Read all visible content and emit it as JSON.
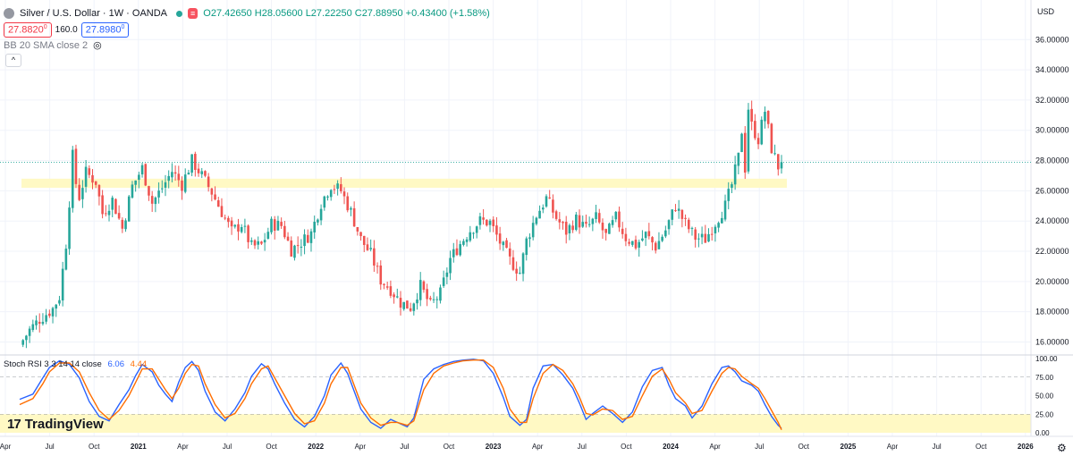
{
  "header": {
    "symbol_title": "Silver / U.S. Dollar · 1W · OANDA",
    "badge": "≡",
    "open": "O27.42650",
    "high": "H28.05600",
    "low": "L27.22250",
    "close": "C27.88950",
    "change": "+0.43400 (+1.58%)",
    "sell_price": "27.8820",
    "sell_sup": "0",
    "spread": "160.0",
    "buy_price": "27.8980",
    "buy_sup": "0",
    "indicator": "BB 20 SMA close 2",
    "collapse_glyph": "^"
  },
  "stoch": {
    "label": "Stoch RSI 3 3 14 14 close",
    "k_value": "6.06",
    "d_value": "4.44"
  },
  "branding": {
    "logo": "17",
    "name": "TradingView"
  },
  "currency": "USD",
  "colors": {
    "up": "#26a69a",
    "down": "#ef5350",
    "k": "#2962ff",
    "d": "#ff6d00",
    "zone": "#fff9c4",
    "grid": "#f0f3fa",
    "text": "#131722"
  },
  "chart_data": [
    {
      "type": "candlestick",
      "title": "Silver / U.S. Dollar · 1W · OANDA",
      "interval": "1W",
      "x_ticks": [
        "Apr",
        "Jul",
        "Oct",
        "2021",
        "Apr",
        "Jul",
        "Oct",
        "2022",
        "Apr",
        "Jul",
        "Oct",
        "2023",
        "Apr",
        "Jul",
        "Oct",
        "2024",
        "Apr",
        "Jul",
        "Oct",
        "2025",
        "Apr",
        "Jul",
        "Oct",
        "2026"
      ],
      "y_ticks": [
        "16.00000",
        "18.00000",
        "20.00000",
        "22.00000",
        "24.00000",
        "26.00000",
        "28.00000",
        "30.00000",
        "32.00000",
        "34.00000",
        "36.00000"
      ],
      "ylim": [
        15.2,
        37.2
      ],
      "last_price": 27.8895,
      "support_zone": [
        26.2,
        26.8
      ],
      "anchors": [
        [
          0,
          15.8
        ],
        [
          3,
          16.8
        ],
        [
          6,
          17.5
        ],
        [
          10,
          18.2
        ],
        [
          12,
          19.0
        ],
        [
          14,
          22.5
        ],
        [
          15,
          25.3
        ],
        [
          16,
          28.3
        ],
        [
          17,
          26.5
        ],
        [
          18,
          25.6
        ],
        [
          20,
          27.2
        ],
        [
          23,
          26.6
        ],
        [
          25,
          24.5
        ],
        [
          28,
          25.4
        ],
        [
          31,
          23.5
        ],
        [
          34,
          26.3
        ],
        [
          37,
          27.5
        ],
        [
          40,
          25.2
        ],
        [
          43,
          26.2
        ],
        [
          46,
          27.3
        ],
        [
          49,
          26.4
        ],
        [
          52,
          28.0
        ],
        [
          55,
          27.0
        ],
        [
          58,
          25.9
        ],
        [
          61,
          24.6
        ],
        [
          64,
          23.3
        ],
        [
          67,
          23.8
        ],
        [
          70,
          22.3
        ],
        [
          73,
          22.4
        ],
        [
          76,
          23.8
        ],
        [
          79,
          23.7
        ],
        [
          82,
          22.1
        ],
        [
          85,
          22.6
        ],
        [
          88,
          23.2
        ],
        [
          91,
          25.2
        ],
        [
          94,
          26.4
        ],
        [
          97,
          26.0
        ],
        [
          100,
          24.6
        ],
        [
          103,
          22.8
        ],
        [
          106,
          21.8
        ],
        [
          109,
          20.1
        ],
        [
          112,
          19.5
        ],
        [
          115,
          18.6
        ],
        [
          118,
          18.3
        ],
        [
          121,
          19.7
        ],
        [
          124,
          18.4
        ],
        [
          127,
          19.2
        ],
        [
          130,
          21.5
        ],
        [
          133,
          22.5
        ],
        [
          136,
          23.4
        ],
        [
          139,
          24.0
        ],
        [
          142,
          23.9
        ],
        [
          145,
          22.6
        ],
        [
          148,
          21.4
        ],
        [
          151,
          20.6
        ],
        [
          153,
          22.7
        ],
        [
          156,
          24.4
        ],
        [
          159,
          25.5
        ],
        [
          162,
          24.2
        ],
        [
          165,
          23.3
        ],
        [
          168,
          24.1
        ],
        [
          171,
          23.5
        ],
        [
          174,
          24.2
        ],
        [
          177,
          23.0
        ],
        [
          180,
          24.2
        ],
        [
          183,
          22.9
        ],
        [
          186,
          22.4
        ],
        [
          189,
          23.1
        ],
        [
          192,
          22.3
        ],
        [
          195,
          23.4
        ],
        [
          198,
          25.0
        ],
        [
          201,
          23.8
        ],
        [
          204,
          22.9
        ],
        [
          207,
          22.8
        ],
        [
          210,
          23.9
        ],
        [
          213,
          25.0
        ],
        [
          215,
          26.4
        ],
        [
          217,
          28.2
        ],
        [
          218,
          30.0
        ],
        [
          219,
          27.5
        ],
        [
          220,
          31.5
        ],
        [
          221,
          30.3
        ],
        [
          223,
          29.4
        ],
        [
          225,
          31.3
        ],
        [
          227,
          28.8
        ],
        [
          229,
          27.6
        ],
        [
          230,
          27.89
        ]
      ]
    },
    {
      "type": "line",
      "title": "Stoch RSI 3 3 14 14 close",
      "ylim": [
        0,
        100
      ],
      "y_ticks": [
        "0.00",
        "25.00",
        "50.00",
        "75.00",
        "100.00"
      ],
      "bands": [
        20,
        80
      ],
      "series": [
        {
          "name": "K",
          "last": 6.06,
          "points": [
            [
              0,
              45
            ],
            [
              4,
              52
            ],
            [
              7,
              74
            ],
            [
              9,
              88
            ],
            [
              12,
              97
            ],
            [
              15,
              92
            ],
            [
              18,
              74
            ],
            [
              21,
              42
            ],
            [
              24,
              22
            ],
            [
              27,
              16
            ],
            [
              30,
              38
            ],
            [
              33,
              58
            ],
            [
              35,
              77
            ],
            [
              37,
              92
            ],
            [
              40,
              82
            ],
            [
              42,
              64
            ],
            [
              44,
              52
            ],
            [
              46,
              42
            ],
            [
              48,
              68
            ],
            [
              50,
              88
            ],
            [
              52,
              96
            ],
            [
              54,
              84
            ],
            [
              56,
              56
            ],
            [
              59,
              28
            ],
            [
              62,
              16
            ],
            [
              65,
              32
            ],
            [
              68,
              54
            ],
            [
              70,
              76
            ],
            [
              73,
              93
            ],
            [
              75,
              86
            ],
            [
              77,
              66
            ],
            [
              80,
              40
            ],
            [
              83,
              18
            ],
            [
              86,
              8
            ],
            [
              89,
              22
            ],
            [
              92,
              50
            ],
            [
              94,
              78
            ],
            [
              97,
              94
            ],
            [
              99,
              80
            ],
            [
              101,
              56
            ],
            [
              103,
              32
            ],
            [
              106,
              14
            ],
            [
              109,
              6
            ],
            [
              112,
              18
            ],
            [
              114,
              14
            ],
            [
              117,
              8
            ],
            [
              119,
              20
            ],
            [
              122,
              72
            ],
            [
              125,
              86
            ],
            [
              128,
              92
            ],
            [
              131,
              96
            ],
            [
              134,
              98
            ],
            [
              137,
              99
            ],
            [
              140,
              97
            ],
            [
              143,
              80
            ],
            [
              146,
              48
            ],
            [
              148,
              22
            ],
            [
              151,
              10
            ],
            [
              153,
              18
            ],
            [
              155,
              60
            ],
            [
              158,
              90
            ],
            [
              161,
              92
            ],
            [
              164,
              78
            ],
            [
              167,
              60
            ],
            [
              169,
              40
            ],
            [
              171,
              18
            ],
            [
              173,
              26
            ],
            [
              176,
              36
            ],
            [
              179,
              26
            ],
            [
              182,
              14
            ],
            [
              185,
              28
            ],
            [
              188,
              62
            ],
            [
              191,
              84
            ],
            [
              194,
              88
            ],
            [
              196,
              64
            ],
            [
              198,
              46
            ],
            [
              201,
              36
            ],
            [
              203,
              20
            ],
            [
              206,
              36
            ],
            [
              209,
              66
            ],
            [
              212,
              88
            ],
            [
              214,
              90
            ],
            [
              216,
              82
            ],
            [
              218,
              70
            ],
            [
              221,
              64
            ],
            [
              223,
              56
            ],
            [
              225,
              38
            ],
            [
              227,
              22
            ],
            [
              229,
              10
            ],
            [
              230,
              6
            ]
          ]
        },
        {
          "name": "D",
          "last": 4.44,
          "points": [
            [
              0,
              38
            ],
            [
              4,
              46
            ],
            [
              7,
              66
            ],
            [
              9,
              82
            ],
            [
              12,
              94
            ],
            [
              15,
              94
            ],
            [
              18,
              82
            ],
            [
              21,
              54
            ],
            [
              24,
              30
            ],
            [
              27,
              18
            ],
            [
              30,
              30
            ],
            [
              33,
              50
            ],
            [
              35,
              68
            ],
            [
              37,
              86
            ],
            [
              40,
              86
            ],
            [
              42,
              72
            ],
            [
              44,
              58
            ],
            [
              46,
              46
            ],
            [
              48,
              60
            ],
            [
              50,
              80
            ],
            [
              52,
              92
            ],
            [
              54,
              90
            ],
            [
              56,
              66
            ],
            [
              59,
              38
            ],
            [
              62,
              20
            ],
            [
              65,
              26
            ],
            [
              68,
              46
            ],
            [
              70,
              66
            ],
            [
              73,
              86
            ],
            [
              75,
              90
            ],
            [
              77,
              74
            ],
            [
              80,
              50
            ],
            [
              83,
              26
            ],
            [
              86,
              12
            ],
            [
              89,
              16
            ],
            [
              92,
              40
            ],
            [
              94,
              66
            ],
            [
              97,
              88
            ],
            [
              99,
              88
            ],
            [
              101,
              64
            ],
            [
              103,
              40
            ],
            [
              106,
              20
            ],
            [
              109,
              10
            ],
            [
              112,
              14
            ],
            [
              114,
              14
            ],
            [
              117,
              10
            ],
            [
              119,
              16
            ],
            [
              122,
              58
            ],
            [
              125,
              80
            ],
            [
              128,
              90
            ],
            [
              131,
              94
            ],
            [
              134,
              97
            ],
            [
              137,
              98
            ],
            [
              140,
              98
            ],
            [
              143,
              88
            ],
            [
              146,
              60
            ],
            [
              148,
              32
            ],
            [
              151,
              14
            ],
            [
              153,
              14
            ],
            [
              155,
              46
            ],
            [
              158,
              80
            ],
            [
              161,
              92
            ],
            [
              164,
              84
            ],
            [
              167,
              66
            ],
            [
              169,
              48
            ],
            [
              171,
              26
            ],
            [
              173,
              24
            ],
            [
              176,
              32
            ],
            [
              179,
              30
            ],
            [
              182,
              18
            ],
            [
              185,
              22
            ],
            [
              188,
              50
            ],
            [
              191,
              76
            ],
            [
              194,
              86
            ],
            [
              196,
              72
            ],
            [
              198,
              54
            ],
            [
              201,
              40
            ],
            [
              203,
              26
            ],
            [
              206,
              30
            ],
            [
              209,
              56
            ],
            [
              212,
              80
            ],
            [
              214,
              88
            ],
            [
              216,
              86
            ],
            [
              218,
              76
            ],
            [
              221,
              66
            ],
            [
              223,
              60
            ],
            [
              225,
              46
            ],
            [
              227,
              30
            ],
            [
              229,
              14
            ],
            [
              230,
              4
            ]
          ]
        }
      ]
    }
  ]
}
